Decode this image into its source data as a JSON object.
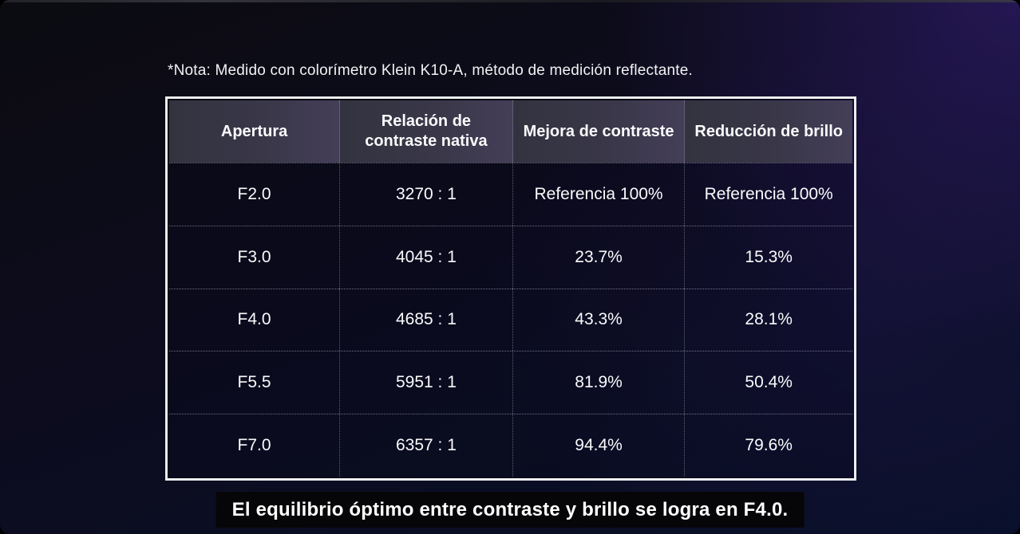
{
  "frame": {
    "note": "*Nota: Medido con colorímetro Klein K10-A, método de medición reflectante.",
    "caption": "El equilibrio óptimo entre contraste y brillo se logra en F4.0."
  },
  "table": {
    "headers": [
      "Apertura",
      "Relación de\ncontraste nativa",
      "Mejora de contraste",
      "Reducción de brillo"
    ]
  },
  "colors": {
    "background_top_left": "#0b0b11",
    "background_purple_glow": "#382080",
    "background_bottom_navy": "#081028",
    "table_border": "#eceef1",
    "header_background": "#3a3748",
    "text": "#fafafc",
    "caption_background": "#060608"
  },
  "chart_data": {
    "type": "table",
    "columns": [
      "Apertura",
      "Relación de contraste nativa",
      "Mejora de contraste",
      "Reducción de brillo"
    ],
    "rows": [
      [
        "F2.0",
        "3270 : 1",
        "Referencia 100%",
        "Referencia 100%"
      ],
      [
        "F3.0",
        "4045 : 1",
        "23.7%",
        "15.3%"
      ],
      [
        "F4.0",
        "4685 : 1",
        "43.3%",
        "28.1%"
      ],
      [
        "F5.5",
        "5951 : 1",
        "81.9%",
        "50.4%"
      ],
      [
        "F7.0",
        "6357 : 1",
        "94.4%",
        "79.6%"
      ]
    ],
    "note": "*Nota: Medido con colorímetro Klein K10-A, método de medición reflectante.",
    "caption": "El equilibrio óptimo entre contraste y brillo se logra en F4.0."
  }
}
